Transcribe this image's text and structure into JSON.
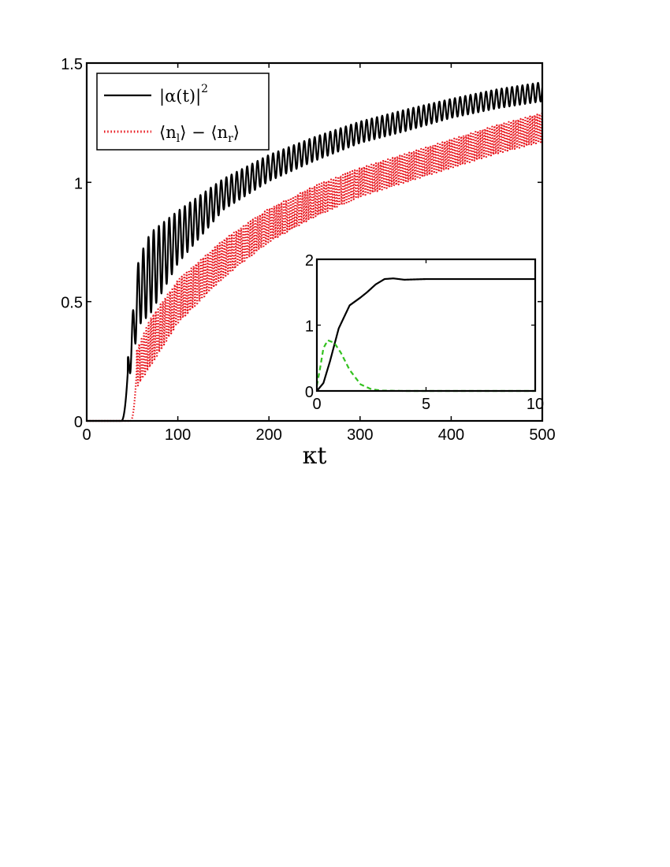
{
  "chart_data": [
    {
      "type": "line",
      "xlabel": "κt",
      "ylabel": "",
      "xlim": [
        0,
        500
      ],
      "ylim": [
        0,
        1.5
      ],
      "xticks": [
        0,
        100,
        200,
        300,
        400,
        500
      ],
      "yticks": [
        0,
        0.5,
        1,
        1.5
      ],
      "xtick_labels": [
        "0",
        "100",
        "200",
        "300",
        "400",
        "500"
      ],
      "ytick_labels": [
        "0",
        "0.5",
        "1",
        "1.5"
      ],
      "grid": false,
      "legend_position": "top-left",
      "series": [
        {
          "name": "|α(t)|²",
          "legend": {
            "main": "|α(t)|",
            "sup": "2"
          },
          "color": "#000000",
          "style": "solid",
          "onset": 38,
          "envelope_x": [
            45,
            57,
            70,
            100,
            150,
            200,
            250,
            300,
            350,
            400,
            450,
            500
          ],
          "envelope_mean": [
            0.2,
            0.54,
            0.62,
            0.77,
            0.95,
            1.06,
            1.14,
            1.21,
            1.26,
            1.31,
            1.35,
            1.38
          ],
          "oscillation_amplitude": [
            0.06,
            0.14,
            0.17,
            0.11,
            0.065,
            0.055,
            0.05,
            0.045,
            0.045,
            0.04,
            0.04,
            0.04
          ],
          "oscillation_period": 5.7
        },
        {
          "name": "⟨n_l⟩ − ⟨n_r⟩",
          "legend": {
            "part1": "⟨n",
            "sub1": "l",
            "part2": "⟩ − ⟨n",
            "sub2": "r",
            "part3": "⟩"
          },
          "color": "#e8141b",
          "style": "dotted",
          "onset": 48,
          "envelope_x": [
            55,
            70,
            100,
            150,
            200,
            250,
            300,
            350,
            400,
            450,
            500
          ],
          "envelope_mean": [
            0.22,
            0.33,
            0.5,
            0.68,
            0.82,
            0.92,
            1.0,
            1.06,
            1.12,
            1.18,
            1.23
          ],
          "oscillation_amplitude": [
            0.08,
            0.1,
            0.09,
            0.08,
            0.07,
            0.065,
            0.06,
            0.06,
            0.06,
            0.06,
            0.06
          ],
          "oscillation_period": 2.6
        }
      ]
    },
    {
      "type": "line",
      "role": "inset",
      "xlim": [
        0,
        10
      ],
      "ylim": [
        0,
        2
      ],
      "xticks": [
        0,
        5,
        10
      ],
      "yticks": [
        0,
        1,
        2
      ],
      "xtick_labels": [
        "0",
        "5",
        "10"
      ],
      "ytick_labels": [
        "0",
        "1",
        "2"
      ],
      "grid": false,
      "series": [
        {
          "color": "#000000",
          "style": "solid",
          "x": [
            0,
            0.3,
            0.6,
            1,
            1.5,
            2,
            2.3,
            2.7,
            3.1,
            3.5,
            4,
            5,
            6,
            7,
            8,
            10
          ],
          "y": [
            0,
            0.12,
            0.45,
            0.95,
            1.3,
            1.42,
            1.5,
            1.62,
            1.7,
            1.71,
            1.69,
            1.7,
            1.7,
            1.7,
            1.7,
            1.7
          ]
        },
        {
          "color": "#33c11f",
          "style": "dashed",
          "x": [
            0,
            0.15,
            0.3,
            0.5,
            0.8,
            1.1,
            1.5,
            2,
            2.5,
            3,
            4,
            6,
            10
          ],
          "y": [
            0.08,
            0.35,
            0.65,
            0.77,
            0.73,
            0.58,
            0.32,
            0.1,
            0.025,
            0.005,
            0,
            0,
            0
          ]
        }
      ]
    }
  ]
}
